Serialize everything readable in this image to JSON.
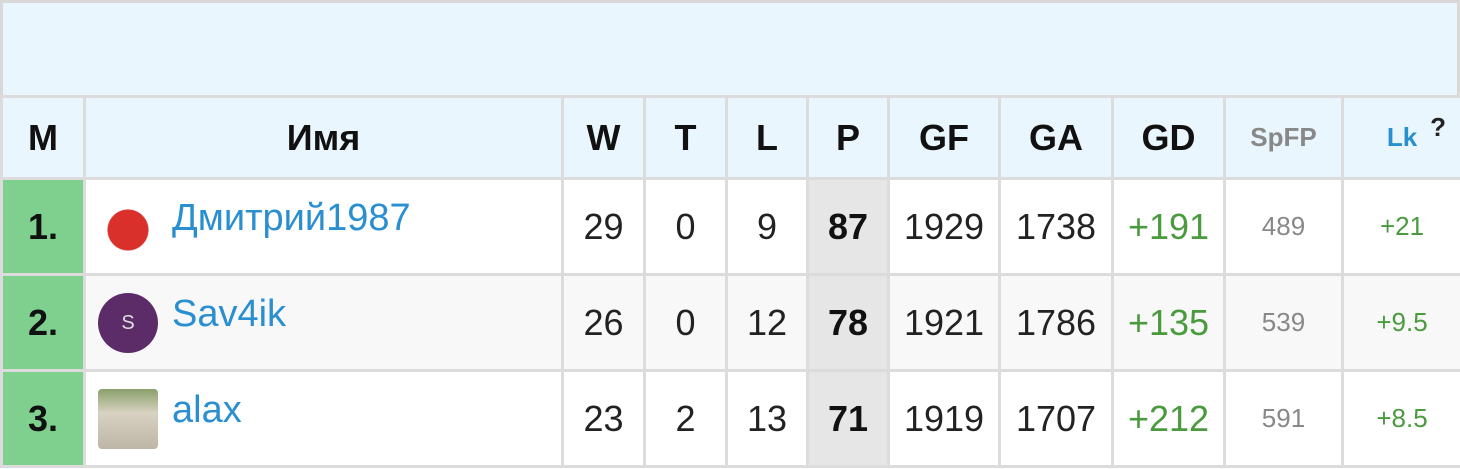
{
  "columns": {
    "m": "М",
    "name": "Имя",
    "w": "W",
    "t": "T",
    "l": "L",
    "p": "P",
    "gf": "GF",
    "ga": "GA",
    "gd": "GD",
    "spfp": "SpFP",
    "lk": "Lk",
    "lk_help": "?"
  },
  "colors": {
    "rank_bg": "#7fcf8f",
    "points_bg": "#e6e6e6",
    "link": "#2a8fd0",
    "positive": "#4a9a3e",
    "header_bg": "#eaf6fd"
  },
  "rows": [
    {
      "rank": "1.",
      "name": "Дмитрий1987",
      "avatar": "player-photo",
      "w": "29",
      "t": "0",
      "l": "9",
      "p": "87",
      "gf": "1929",
      "ga": "1738",
      "gd": "+191",
      "spfp": "489",
      "lk": "+21"
    },
    {
      "rank": "2.",
      "name": "Sav4ik",
      "avatar": "S",
      "w": "26",
      "t": "0",
      "l": "12",
      "p": "78",
      "gf": "1921",
      "ga": "1786",
      "gd": "+135",
      "spfp": "539",
      "lk": "+9.5"
    },
    {
      "rank": "3.",
      "name": "alax",
      "avatar": "alpaca-photo",
      "w": "23",
      "t": "2",
      "l": "13",
      "p": "71",
      "gf": "1919",
      "ga": "1707",
      "gd": "+212",
      "spfp": "591",
      "lk": "+8.5"
    }
  ]
}
